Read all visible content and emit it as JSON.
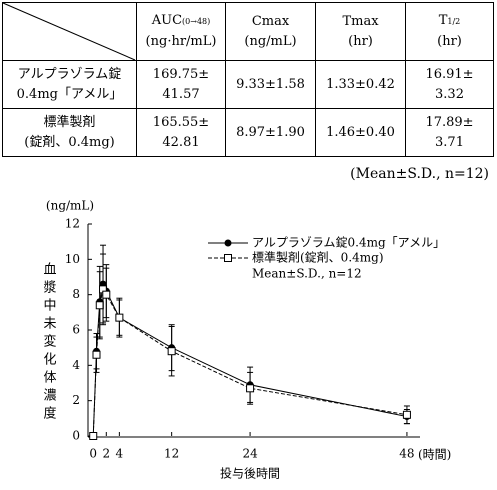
{
  "table": {
    "header": [
      {
        "name": "AUC",
        "sub": "(0→48)",
        "unit": "(ng·hr/mL)"
      },
      {
        "name": "Cmax",
        "unit": "(ng/mL)"
      },
      {
        "name": "Tmax",
        "unit": "(hr)"
      },
      {
        "name": "T",
        "sub": "1/2",
        "unit": "(hr)"
      }
    ],
    "rows": [
      {
        "label": [
          "アルプラゾラム錠",
          "0.4mg「アメル」"
        ],
        "cells": [
          [
            "169.75±",
            "41.57"
          ],
          [
            "9.33±1.58"
          ],
          [
            "1.33±0.42"
          ],
          [
            "16.91±",
            "3.32"
          ]
        ]
      },
      {
        "label": [
          "標準製剤",
          "(錠剤、0.4mg)"
        ],
        "cells": [
          [
            "165.55±",
            "42.81"
          ],
          [
            "8.97±1.90"
          ],
          [
            "1.46±0.40"
          ],
          [
            "17.89±",
            "3.71"
          ]
        ]
      }
    ],
    "note": "(Mean±S.D., n=12)"
  },
  "chart_data": {
    "type": "line",
    "y_unit": "(ng/mL)",
    "y_label": "血漿中未変化体濃度",
    "x_label": "投与後時間",
    "x_unit": "(時間)",
    "x": [
      0,
      0.5,
      1,
      1.5,
      2,
      4,
      12,
      24,
      48
    ],
    "series": [
      {
        "name": "アルプラゾラム錠0.4mg「アメル」",
        "color": "#000000",
        "marker": "circle",
        "dashed": false,
        "values": [
          0,
          4.8,
          7.6,
          8.6,
          8.2,
          6.7,
          5.0,
          2.9,
          1.1
        ],
        "errors": [
          0,
          1.0,
          2.0,
          2.2,
          1.5,
          1.1,
          1.3,
          1.0,
          0.4
        ]
      },
      {
        "name": "標準製剤(錠剤、0.4mg)",
        "color": "#000000",
        "marker": "square",
        "dashed": true,
        "values": [
          0,
          4.6,
          7.4,
          8.3,
          8.0,
          6.7,
          4.8,
          2.7,
          1.2
        ],
        "errors": [
          0,
          1.0,
          1.9,
          2.0,
          1.5,
          1.0,
          1.4,
          0.9,
          0.5
        ]
      }
    ],
    "legend_note": "Mean±S.D., n=12",
    "xlim": [
      -0.8,
      50
    ],
    "xticks": [
      0,
      2,
      4,
      12,
      24,
      48
    ],
    "ylim": [
      0,
      12
    ],
    "yticks": [
      0,
      2,
      4,
      6,
      8,
      10,
      12
    ]
  }
}
